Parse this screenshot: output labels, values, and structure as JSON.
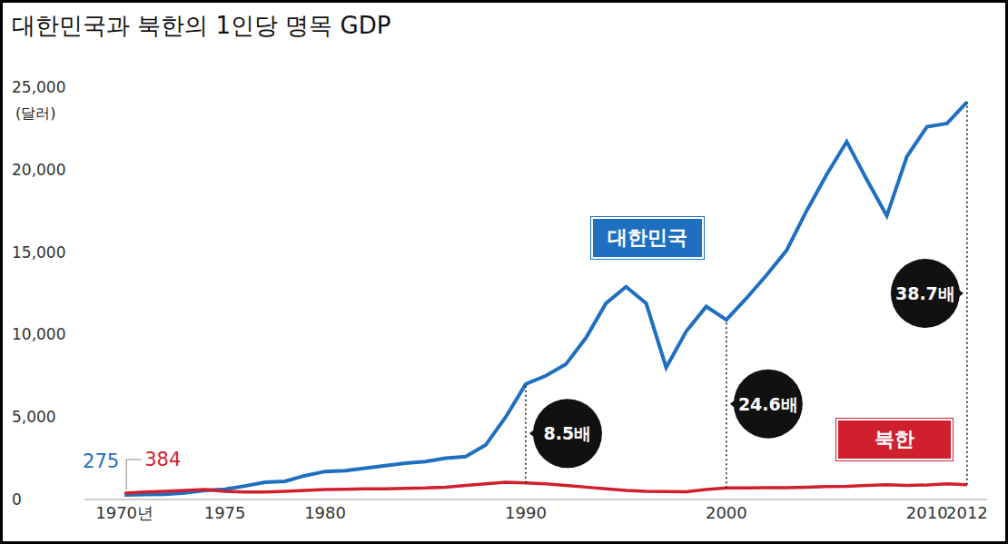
{
  "chart_data": {
    "type": "line",
    "title": "대한민국과 북한의 1인당 명목 GDP",
    "ylabel": "(달러)",
    "x": [
      1970,
      1971,
      1972,
      1973,
      1974,
      1975,
      1976,
      1977,
      1978,
      1979,
      1980,
      1981,
      1982,
      1983,
      1984,
      1985,
      1986,
      1987,
      1988,
      1989,
      1990,
      1991,
      1992,
      1993,
      1994,
      1995,
      1996,
      1997,
      1998,
      1999,
      2000,
      2001,
      2002,
      2003,
      2004,
      2005,
      2006,
      2007,
      2008,
      2009,
      2010,
      2011,
      2012
    ],
    "xlim": [
      1968,
      2013
    ],
    "xticks": [
      {
        "value": 1970,
        "label": "1970년"
      },
      1975,
      1980,
      1990,
      2000,
      2010,
      2012
    ],
    "ylim": [
      0,
      25000
    ],
    "yticks": [
      0,
      {
        "value": 5000,
        "label": "5,000"
      },
      {
        "value": 10000,
        "label": "10,000"
      },
      {
        "value": 15000,
        "label": "15,000"
      },
      {
        "value": 20000,
        "label": "20,000"
      },
      {
        "value": 25000,
        "label": "25,000"
      }
    ],
    "grid": false,
    "series": [
      {
        "name": "대한민국",
        "color": "#1f6fc0",
        "values": [
          275,
          300,
          320,
          400,
          550,
          620,
          820,
          1040,
          1100,
          1450,
          1700,
          1750,
          1900,
          2050,
          2200,
          2300,
          2500,
          2600,
          3300,
          5000,
          7000,
          7500,
          8200,
          9800,
          11900,
          12900,
          11900,
          8000,
          10200,
          11700,
          10900,
          12200,
          13600,
          15100,
          17500,
          19700,
          21700,
          19400,
          17200,
          20800,
          22600,
          22800,
          24100
        ]
      },
      {
        "name": "북한",
        "color": "#d0202e",
        "values": [
          384,
          450,
          500,
          550,
          600,
          500,
          450,
          450,
          500,
          550,
          600,
          620,
          650,
          650,
          680,
          700,
          750,
          850,
          950,
          1050,
          1000,
          950,
          850,
          750,
          650,
          550,
          500,
          480,
          470,
          600,
          700,
          700,
          720,
          720,
          750,
          780,
          800,
          850,
          900,
          850,
          880,
          950,
          900
        ]
      }
    ],
    "start_labels": [
      {
        "text": "275",
        "x": 1970,
        "series": "대한민국"
      },
      {
        "text": "384",
        "x": 1970,
        "series": "북한"
      }
    ],
    "annotations": [
      {
        "text": "8.5배",
        "x": 1990
      },
      {
        "text": "24.6배",
        "x": 2000
      },
      {
        "text": "38.7배",
        "x": 2012
      }
    ]
  }
}
